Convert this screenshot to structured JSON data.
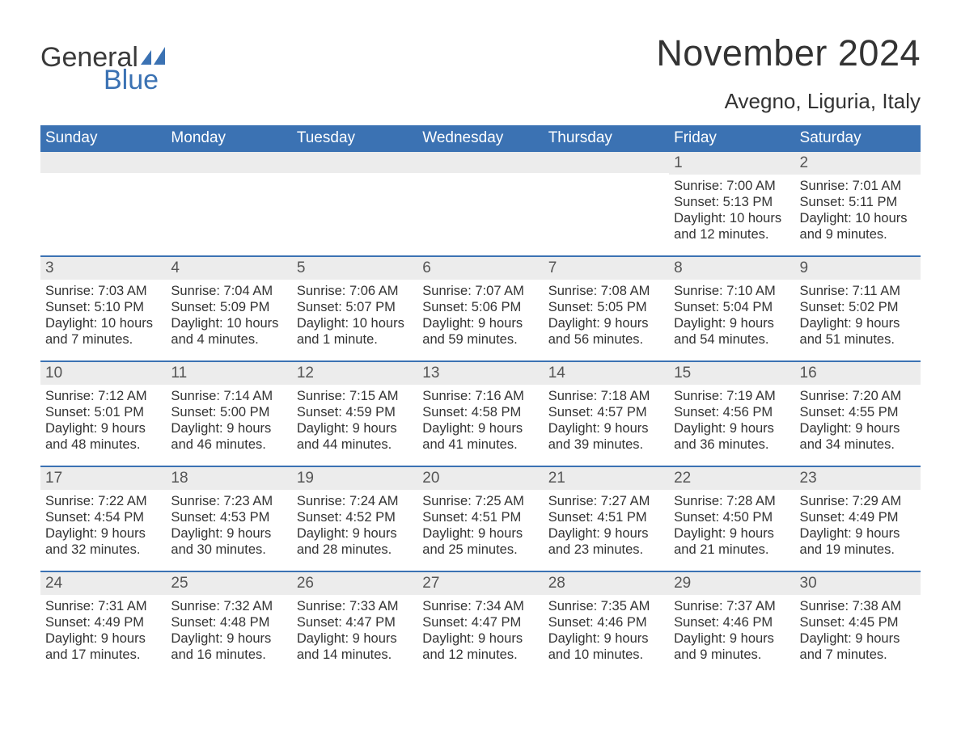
{
  "logo": {
    "line1": "General",
    "line2": "Blue",
    "icon_color": "#3b72b3"
  },
  "title": "November 2024",
  "location": "Avegno, Liguria, Italy",
  "colors": {
    "header_bg": "#3b72b3",
    "header_text": "#ffffff",
    "divider": "#3b72b3",
    "daynum_bg": "#ececec",
    "body_text": "#333333",
    "page_bg": "#ffffff"
  },
  "days_of_week": [
    "Sunday",
    "Monday",
    "Tuesday",
    "Wednesday",
    "Thursday",
    "Friday",
    "Saturday"
  ],
  "weeks": [
    [
      {
        "blank": true
      },
      {
        "blank": true
      },
      {
        "blank": true
      },
      {
        "blank": true
      },
      {
        "blank": true
      },
      {
        "n": "1",
        "sunrise": "Sunrise: 7:00 AM",
        "sunset": "Sunset: 5:13 PM",
        "dl1": "Daylight: 10 hours",
        "dl2": "and 12 minutes."
      },
      {
        "n": "2",
        "sunrise": "Sunrise: 7:01 AM",
        "sunset": "Sunset: 5:11 PM",
        "dl1": "Daylight: 10 hours",
        "dl2": "and 9 minutes."
      }
    ],
    [
      {
        "n": "3",
        "sunrise": "Sunrise: 7:03 AM",
        "sunset": "Sunset: 5:10 PM",
        "dl1": "Daylight: 10 hours",
        "dl2": "and 7 minutes."
      },
      {
        "n": "4",
        "sunrise": "Sunrise: 7:04 AM",
        "sunset": "Sunset: 5:09 PM",
        "dl1": "Daylight: 10 hours",
        "dl2": "and 4 minutes."
      },
      {
        "n": "5",
        "sunrise": "Sunrise: 7:06 AM",
        "sunset": "Sunset: 5:07 PM",
        "dl1": "Daylight: 10 hours",
        "dl2": "and 1 minute."
      },
      {
        "n": "6",
        "sunrise": "Sunrise: 7:07 AM",
        "sunset": "Sunset: 5:06 PM",
        "dl1": "Daylight: 9 hours",
        "dl2": "and 59 minutes."
      },
      {
        "n": "7",
        "sunrise": "Sunrise: 7:08 AM",
        "sunset": "Sunset: 5:05 PM",
        "dl1": "Daylight: 9 hours",
        "dl2": "and 56 minutes."
      },
      {
        "n": "8",
        "sunrise": "Sunrise: 7:10 AM",
        "sunset": "Sunset: 5:04 PM",
        "dl1": "Daylight: 9 hours",
        "dl2": "and 54 minutes."
      },
      {
        "n": "9",
        "sunrise": "Sunrise: 7:11 AM",
        "sunset": "Sunset: 5:02 PM",
        "dl1": "Daylight: 9 hours",
        "dl2": "and 51 minutes."
      }
    ],
    [
      {
        "n": "10",
        "sunrise": "Sunrise: 7:12 AM",
        "sunset": "Sunset: 5:01 PM",
        "dl1": "Daylight: 9 hours",
        "dl2": "and 48 minutes."
      },
      {
        "n": "11",
        "sunrise": "Sunrise: 7:14 AM",
        "sunset": "Sunset: 5:00 PM",
        "dl1": "Daylight: 9 hours",
        "dl2": "and 46 minutes."
      },
      {
        "n": "12",
        "sunrise": "Sunrise: 7:15 AM",
        "sunset": "Sunset: 4:59 PM",
        "dl1": "Daylight: 9 hours",
        "dl2": "and 44 minutes."
      },
      {
        "n": "13",
        "sunrise": "Sunrise: 7:16 AM",
        "sunset": "Sunset: 4:58 PM",
        "dl1": "Daylight: 9 hours",
        "dl2": "and 41 minutes."
      },
      {
        "n": "14",
        "sunrise": "Sunrise: 7:18 AM",
        "sunset": "Sunset: 4:57 PM",
        "dl1": "Daylight: 9 hours",
        "dl2": "and 39 minutes."
      },
      {
        "n": "15",
        "sunrise": "Sunrise: 7:19 AM",
        "sunset": "Sunset: 4:56 PM",
        "dl1": "Daylight: 9 hours",
        "dl2": "and 36 minutes."
      },
      {
        "n": "16",
        "sunrise": "Sunrise: 7:20 AM",
        "sunset": "Sunset: 4:55 PM",
        "dl1": "Daylight: 9 hours",
        "dl2": "and 34 minutes."
      }
    ],
    [
      {
        "n": "17",
        "sunrise": "Sunrise: 7:22 AM",
        "sunset": "Sunset: 4:54 PM",
        "dl1": "Daylight: 9 hours",
        "dl2": "and 32 minutes."
      },
      {
        "n": "18",
        "sunrise": "Sunrise: 7:23 AM",
        "sunset": "Sunset: 4:53 PM",
        "dl1": "Daylight: 9 hours",
        "dl2": "and 30 minutes."
      },
      {
        "n": "19",
        "sunrise": "Sunrise: 7:24 AM",
        "sunset": "Sunset: 4:52 PM",
        "dl1": "Daylight: 9 hours",
        "dl2": "and 28 minutes."
      },
      {
        "n": "20",
        "sunrise": "Sunrise: 7:25 AM",
        "sunset": "Sunset: 4:51 PM",
        "dl1": "Daylight: 9 hours",
        "dl2": "and 25 minutes."
      },
      {
        "n": "21",
        "sunrise": "Sunrise: 7:27 AM",
        "sunset": "Sunset: 4:51 PM",
        "dl1": "Daylight: 9 hours",
        "dl2": "and 23 minutes."
      },
      {
        "n": "22",
        "sunrise": "Sunrise: 7:28 AM",
        "sunset": "Sunset: 4:50 PM",
        "dl1": "Daylight: 9 hours",
        "dl2": "and 21 minutes."
      },
      {
        "n": "23",
        "sunrise": "Sunrise: 7:29 AM",
        "sunset": "Sunset: 4:49 PM",
        "dl1": "Daylight: 9 hours",
        "dl2": "and 19 minutes."
      }
    ],
    [
      {
        "n": "24",
        "sunrise": "Sunrise: 7:31 AM",
        "sunset": "Sunset: 4:49 PM",
        "dl1": "Daylight: 9 hours",
        "dl2": "and 17 minutes."
      },
      {
        "n": "25",
        "sunrise": "Sunrise: 7:32 AM",
        "sunset": "Sunset: 4:48 PM",
        "dl1": "Daylight: 9 hours",
        "dl2": "and 16 minutes."
      },
      {
        "n": "26",
        "sunrise": "Sunrise: 7:33 AM",
        "sunset": "Sunset: 4:47 PM",
        "dl1": "Daylight: 9 hours",
        "dl2": "and 14 minutes."
      },
      {
        "n": "27",
        "sunrise": "Sunrise: 7:34 AM",
        "sunset": "Sunset: 4:47 PM",
        "dl1": "Daylight: 9 hours",
        "dl2": "and 12 minutes."
      },
      {
        "n": "28",
        "sunrise": "Sunrise: 7:35 AM",
        "sunset": "Sunset: 4:46 PM",
        "dl1": "Daylight: 9 hours",
        "dl2": "and 10 minutes."
      },
      {
        "n": "29",
        "sunrise": "Sunrise: 7:37 AM",
        "sunset": "Sunset: 4:46 PM",
        "dl1": "Daylight: 9 hours",
        "dl2": "and 9 minutes."
      },
      {
        "n": "30",
        "sunrise": "Sunrise: 7:38 AM",
        "sunset": "Sunset: 4:45 PM",
        "dl1": "Daylight: 9 hours",
        "dl2": "and 7 minutes."
      }
    ]
  ]
}
